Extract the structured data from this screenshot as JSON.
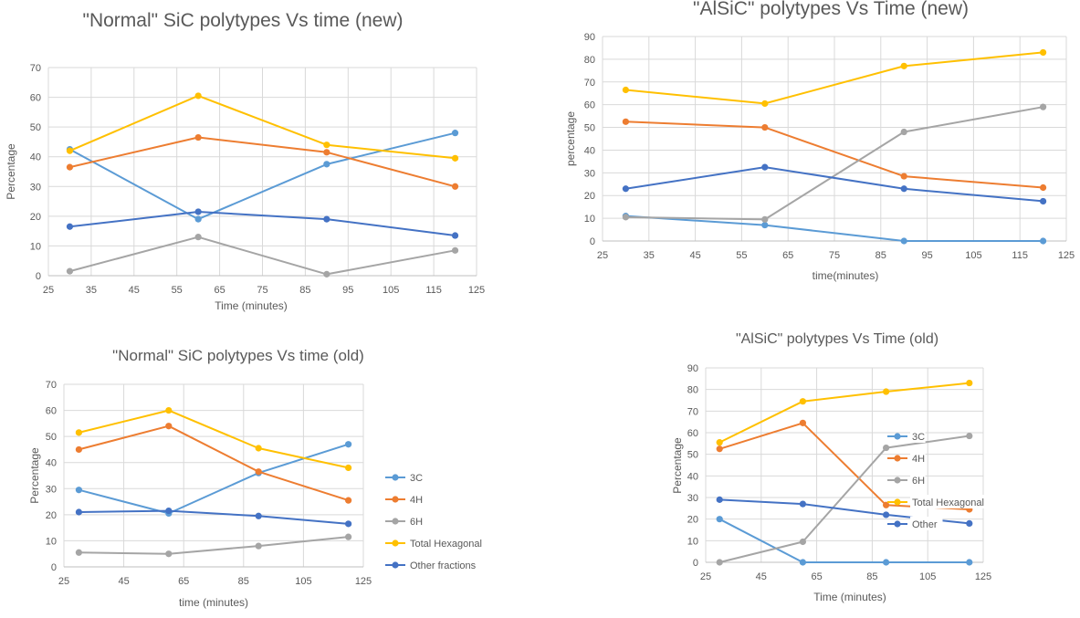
{
  "colors": {
    "3C": "#5B9BD5",
    "4H": "#ED7D31",
    "6H": "#A5A5A5",
    "Total Hexagonal": "#FFC000",
    "Other": "#4472C4",
    "grid": "#d9d9d9",
    "axis": "#bfbfbf",
    "text": "#595959"
  },
  "chart_data": [
    {
      "type": "scatter",
      "title": "\"Normal\" SiC polytypes Vs time (new)",
      "xlabel": "Time (minutes)",
      "ylabel": "Percentage",
      "xlim": [
        25,
        125
      ],
      "ylim": [
        0,
        70
      ],
      "grid": true,
      "x_ticks": [
        25,
        35,
        45,
        55,
        65,
        75,
        85,
        95,
        105,
        115,
        125
      ],
      "y_ticks": [
        0,
        10,
        20,
        30,
        40,
        50,
        60,
        70
      ],
      "legend": "none",
      "x": [
        30,
        60,
        90,
        120
      ],
      "series": [
        {
          "key": "3C",
          "values": [
            42.5,
            19,
            37.5,
            48
          ]
        },
        {
          "key": "4H",
          "values": [
            36.5,
            46.5,
            41.5,
            30
          ]
        },
        {
          "key": "6H",
          "values": [
            1.5,
            13,
            0.5,
            8.5
          ]
        },
        {
          "key": "Total Hexagonal",
          "values": [
            42,
            60.5,
            44,
            39.5
          ]
        },
        {
          "key": "Other",
          "values": [
            16.5,
            21.5,
            19,
            13.5
          ]
        }
      ]
    },
    {
      "type": "scatter",
      "title": "\"AlSiC\" polytypes Vs Time (new)",
      "xlabel": "time(minutes)",
      "ylabel": "percentage",
      "xlim": [
        25,
        125
      ],
      "ylim": [
        0,
        90
      ],
      "grid": true,
      "x_ticks": [
        25,
        35,
        45,
        55,
        65,
        75,
        85,
        95,
        105,
        115,
        125
      ],
      "y_ticks": [
        0,
        10,
        20,
        30,
        40,
        50,
        60,
        70,
        80,
        90
      ],
      "legend": "none",
      "x": [
        30,
        60,
        90,
        120
      ],
      "series": [
        {
          "key": "3C",
          "values": [
            11,
            7,
            0,
            0
          ]
        },
        {
          "key": "4H",
          "values": [
            52.5,
            50,
            28.5,
            23.5
          ]
        },
        {
          "key": "6H",
          "values": [
            10.5,
            9.5,
            48,
            59
          ]
        },
        {
          "key": "Total Hexagonal",
          "values": [
            66.5,
            60.5,
            77,
            83
          ]
        },
        {
          "key": "Other",
          "values": [
            23,
            32.5,
            23,
            17.5
          ]
        }
      ]
    },
    {
      "type": "scatter",
      "title": "\"Normal\" SiC polytypes Vs time (old)",
      "xlabel": "time (minutes)",
      "ylabel": "Percentage",
      "xlim": [
        25,
        125
      ],
      "ylim": [
        0,
        70
      ],
      "grid": true,
      "x_ticks": [
        25,
        45,
        65,
        85,
        105,
        125
      ],
      "y_ticks": [
        0,
        10,
        20,
        30,
        40,
        50,
        60,
        70
      ],
      "legend": "right",
      "x": [
        30,
        60,
        90,
        120
      ],
      "series": [
        {
          "key": "3C",
          "name": "3C",
          "values": [
            29.5,
            20.5,
            36,
            47
          ]
        },
        {
          "key": "4H",
          "name": "4H",
          "values": [
            45,
            54,
            36.5,
            25.5
          ]
        },
        {
          "key": "6H",
          "name": "6H",
          "values": [
            5.5,
            5,
            8,
            11.5
          ]
        },
        {
          "key": "Total Hexagonal",
          "name": "Total Hexagonal",
          "values": [
            51.5,
            60,
            45.5,
            38
          ]
        },
        {
          "key": "Other",
          "name": "Other fractions",
          "values": [
            21,
            21.5,
            19.5,
            16.5
          ]
        }
      ]
    },
    {
      "type": "scatter",
      "title": "\"AlSiC\" polytypes Vs Time (old)",
      "xlabel": "Time (minutes)",
      "ylabel": "Percentage",
      "xlim": [
        25,
        125
      ],
      "ylim": [
        0,
        90
      ],
      "grid": true,
      "x_ticks": [
        25,
        45,
        65,
        85,
        105,
        125
      ],
      "y_ticks": [
        0,
        10,
        20,
        30,
        40,
        50,
        60,
        70,
        80,
        90
      ],
      "legend": "inside-right",
      "x": [
        30,
        60,
        90,
        120
      ],
      "series": [
        {
          "key": "3C",
          "name": "3C",
          "values": [
            20,
            0,
            0,
            0
          ]
        },
        {
          "key": "4H",
          "name": "4H",
          "values": [
            52.5,
            64.5,
            26.5,
            24.5
          ]
        },
        {
          "key": "6H",
          "name": "6H",
          "values": [
            0,
            9.5,
            53,
            58.5
          ]
        },
        {
          "key": "Total Hexagonal",
          "name": "Total Hexagonal",
          "values": [
            55.5,
            74.5,
            79,
            83
          ]
        },
        {
          "key": "Other",
          "name": "Other",
          "values": [
            29,
            27,
            22,
            18
          ]
        }
      ]
    }
  ]
}
